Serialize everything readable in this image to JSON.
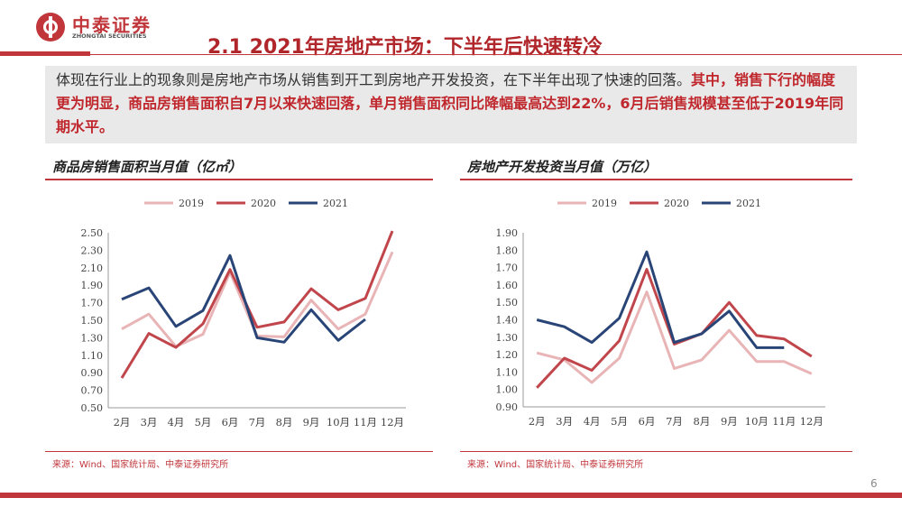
{
  "header": {
    "logo_cn": "中泰证券",
    "logo_en": "ZHONGTAI SECURITIES",
    "title": "2.1 2021年房地产市场：下半年后快速转冷"
  },
  "summary": {
    "plain": "体现在行业上的现象则是房地产市场从销售到开工到房地产开发投资，在下半年出现了快速的回落。",
    "highlight": "其中，销售下行的幅度更为明显，商品房销售面积自7月以来快速回落，单月销售面积同比降幅最高达到22%，6月后销售规模甚至低于2019年同期水平。"
  },
  "colors": {
    "s2019": "#e8b4b6",
    "s2020": "#c0464c",
    "s2021": "#294577",
    "accent": "#c0363b"
  },
  "chart_data": [
    {
      "type": "line",
      "title": "商品房销售面积当月值（亿㎡）",
      "categories": [
        "2月",
        "3月",
        "4月",
        "5月",
        "6月",
        "7月",
        "8月",
        "9月",
        "10月",
        "11月",
        "12月"
      ],
      "ylim": [
        0.5,
        2.5
      ],
      "yticks": [
        "2.50",
        "2.30",
        "2.10",
        "1.90",
        "1.70",
        "1.50",
        "1.30",
        "1.10",
        "0.90",
        "0.70",
        "0.50"
      ],
      "legend_position": "top",
      "series": [
        {
          "name": "2019",
          "values": [
            1.4,
            1.57,
            1.2,
            1.34,
            2.05,
            1.32,
            1.31,
            1.73,
            1.4,
            1.57,
            2.28
          ]
        },
        {
          "name": "2020",
          "values": [
            0.84,
            1.35,
            1.19,
            1.46,
            2.08,
            1.42,
            1.48,
            1.86,
            1.62,
            1.75,
            2.52
          ]
        },
        {
          "name": "2021",
          "values": [
            1.74,
            1.87,
            1.43,
            1.61,
            2.24,
            1.3,
            1.25,
            1.62,
            1.27,
            1.51,
            null
          ]
        }
      ],
      "source": "来源：Wind、国家统计局、中泰证券研究所"
    },
    {
      "type": "line",
      "title": "房地产开发投资当月值（万亿）",
      "categories": [
        "2月",
        "3月",
        "4月",
        "5月",
        "6月",
        "7月",
        "8月",
        "9月",
        "10月",
        "11月",
        "12月"
      ],
      "ylim": [
        0.9,
        1.9
      ],
      "yticks": [
        "1.90",
        "1.80",
        "1.70",
        "1.60",
        "1.50",
        "1.40",
        "1.30",
        "1.20",
        "1.10",
        "1.00",
        "0.90"
      ],
      "legend_position": "top",
      "series": [
        {
          "name": "2019",
          "values": [
            1.21,
            1.17,
            1.04,
            1.18,
            1.56,
            1.12,
            1.17,
            1.34,
            1.16,
            1.16,
            1.09
          ]
        },
        {
          "name": "2020",
          "values": [
            1.01,
            1.18,
            1.11,
            1.28,
            1.69,
            1.26,
            1.32,
            1.5,
            1.31,
            1.29,
            1.19
          ]
        },
        {
          "name": "2021",
          "values": [
            1.4,
            1.36,
            1.27,
            1.41,
            1.79,
            1.27,
            1.32,
            1.45,
            1.24,
            1.24,
            null
          ]
        }
      ],
      "source": "来源：Wind、国家统计局、中泰证券研究所"
    }
  ],
  "page_number": "6"
}
